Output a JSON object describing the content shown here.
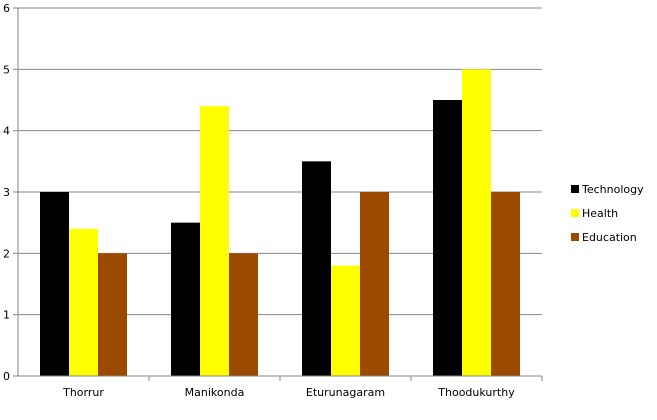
{
  "chart_data": {
    "type": "bar",
    "title": "",
    "xlabel": "",
    "ylabel": "",
    "categories": [
      "Thorrur",
      "Manikonda",
      "Eturunagaram",
      "Thoodukurthy"
    ],
    "series": [
      {
        "name": "Technology",
        "values": [
          3,
          2.5,
          3.5,
          4.5
        ],
        "color": "#000000"
      },
      {
        "name": "Health",
        "values": [
          2.4,
          4.4,
          1.8,
          5
        ],
        "color": "#FFFF00"
      },
      {
        "name": "Education",
        "values": [
          2,
          2,
          3,
          3
        ],
        "color": "#9C4A00"
      }
    ],
    "ylim": [
      0,
      6
    ],
    "yticks": [
      "0",
      "1",
      "2",
      "3",
      "4",
      "5",
      "6"
    ],
    "grid": true,
    "legend_position": "right",
    "gridline_color": "#868686",
    "axis_color": "#868686"
  }
}
